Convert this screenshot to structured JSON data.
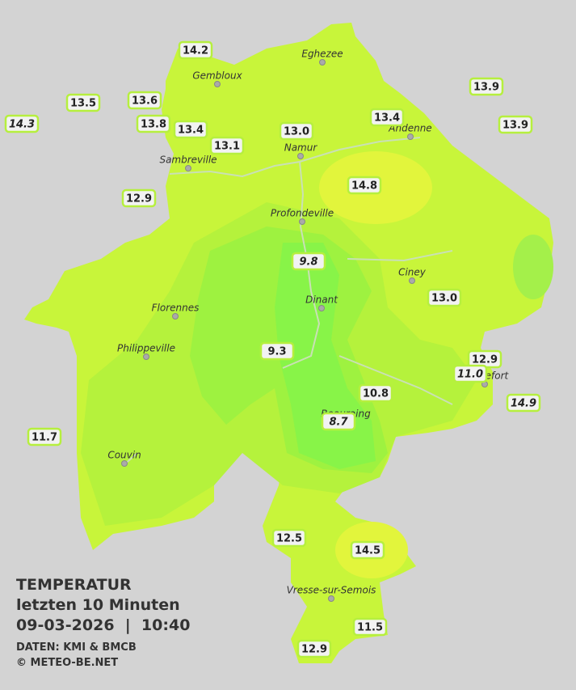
{
  "legend": {
    "title": "TEMPERATUR",
    "period": "letzten 10 Minuten",
    "datetime": "09-03-2026  |  10:40",
    "source": "DATEN: KMI & BMCB",
    "copyright": "© METEO-BE.NET"
  },
  "cities": [
    "Eghezee",
    "Gembloux",
    "Andenne",
    "Namur",
    "Sambreville",
    "Profondeville",
    "Ciney",
    "Dinant",
    "Florennes",
    "Philippeville",
    "Beauraing",
    "Rochefort",
    "Couvin",
    "Vresse-sur-Semois"
  ],
  "stations": [
    {
      "label": "14.2",
      "italic": false
    },
    {
      "label": "13.5",
      "italic": false
    },
    {
      "label": "14.3",
      "italic": true
    },
    {
      "label": "13.6",
      "italic": false
    },
    {
      "label": "13.8",
      "italic": false
    },
    {
      "label": "13.4",
      "italic": false
    },
    {
      "label": "13.1",
      "italic": false
    },
    {
      "label": "13.0",
      "italic": false
    },
    {
      "label": "13.4",
      "italic": false
    },
    {
      "label": "13.9",
      "italic": false
    },
    {
      "label": "13.9",
      "italic": false
    },
    {
      "label": "14.8",
      "italic": false
    },
    {
      "label": "12.9",
      "italic": false
    },
    {
      "label": "9.8",
      "italic": true
    },
    {
      "label": "13.0",
      "italic": false
    },
    {
      "label": "9.3",
      "italic": false
    },
    {
      "label": "12.9",
      "italic": false
    },
    {
      "label": "11.0",
      "italic": true
    },
    {
      "label": "10.8",
      "italic": false
    },
    {
      "label": "14.9",
      "italic": true
    },
    {
      "label": "8.7",
      "italic": true
    },
    {
      "label": "11.7",
      "italic": false
    },
    {
      "label": "12.5",
      "italic": false
    },
    {
      "label": "14.5",
      "italic": false
    },
    {
      "label": "11.5",
      "italic": false
    },
    {
      "label": "12.9",
      "italic": false
    }
  ]
}
